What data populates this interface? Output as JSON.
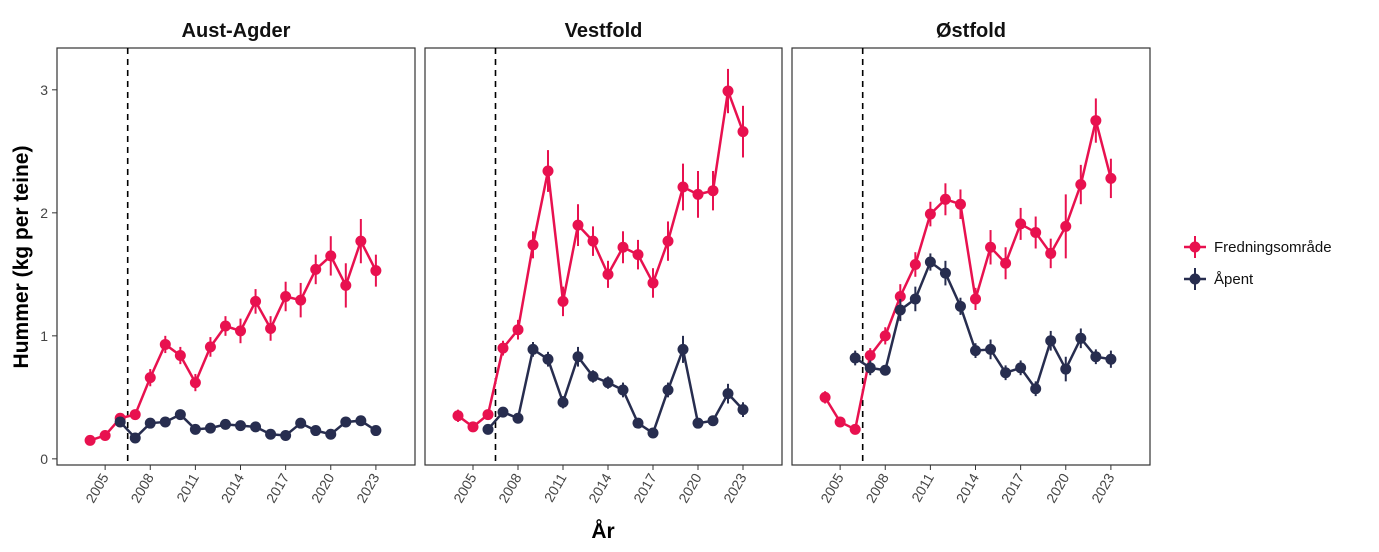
{
  "chart_data": {
    "type": "line",
    "xlabel": "År",
    "ylabel": "Hummer (kg per teine)",
    "xlim": [
      2001.8,
      2025.6
    ],
    "ylim": [
      -0.05,
      3.34
    ],
    "x_ticks": [
      2005,
      2008,
      2011,
      2014,
      2017,
      2020,
      2023
    ],
    "y_ticks": [
      0,
      1,
      2,
      3
    ],
    "reference_line_x": 2006.5,
    "grid": false,
    "legend_position": "right",
    "colors": {
      "Fredningsområde": "#e8114f",
      "Åpent": "#272d4f"
    },
    "legend": [
      "Fredningsområde",
      "Åpent"
    ],
    "panels": [
      {
        "title": "Aust-Agder",
        "series": [
          {
            "name": "Fredningsområde",
            "x": [
              2004,
              2005,
              2006,
              2007,
              2008,
              2009,
              2010,
              2011,
              2012,
              2013,
              2014,
              2015,
              2016,
              2017,
              2018,
              2019,
              2020,
              2021,
              2022,
              2023
            ],
            "y": [
              0.15,
              0.19,
              0.33,
              0.36,
              0.66,
              0.93,
              0.84,
              0.62,
              0.91,
              1.08,
              1.04,
              1.28,
              1.06,
              1.32,
              1.29,
              1.54,
              1.65,
              1.41,
              1.77,
              1.53
            ],
            "err": [
              0.02,
              0.02,
              0.03,
              0.03,
              0.07,
              0.07,
              0.07,
              0.07,
              0.08,
              0.08,
              0.1,
              0.1,
              0.1,
              0.12,
              0.14,
              0.12,
              0.16,
              0.18,
              0.18,
              0.13
            ]
          },
          {
            "name": "Åpent",
            "x": [
              2006,
              2007,
              2008,
              2009,
              2010,
              2011,
              2012,
              2013,
              2014,
              2015,
              2016,
              2017,
              2018,
              2019,
              2020,
              2021,
              2022,
              2023
            ],
            "y": [
              0.3,
              0.17,
              0.29,
              0.3,
              0.36,
              0.24,
              0.25,
              0.28,
              0.27,
              0.26,
              0.2,
              0.19,
              0.29,
              0.23,
              0.2,
              0.3,
              0.31,
              0.23
            ],
            "err": [
              0.03,
              0.02,
              0.02,
              0.02,
              0.03,
              0.02,
              0.02,
              0.02,
              0.02,
              0.03,
              0.02,
              0.02,
              0.03,
              0.02,
              0.02,
              0.03,
              0.03,
              0.03
            ]
          }
        ]
      },
      {
        "title": "Vestfold",
        "series": [
          {
            "name": "Fredningsområde",
            "x": [
              2004,
              2005,
              2006,
              2007,
              2008,
              2009,
              2010,
              2011,
              2012,
              2013,
              2014,
              2015,
              2016,
              2017,
              2018,
              2019,
              2020,
              2021,
              2022,
              2023
            ],
            "y": [
              0.35,
              0.26,
              0.36,
              0.9,
              1.05,
              1.74,
              2.34,
              1.28,
              1.9,
              1.77,
              1.5,
              1.72,
              1.66,
              1.43,
              1.77,
              2.21,
              2.15,
              2.18,
              2.99,
              2.66
            ],
            "err": [
              0.05,
              0.03,
              0.04,
              0.06,
              0.08,
              0.11,
              0.17,
              0.12,
              0.17,
              0.12,
              0.11,
              0.13,
              0.12,
              0.12,
              0.16,
              0.19,
              0.19,
              0.16,
              0.18,
              0.21
            ]
          },
          {
            "name": "Åpent",
            "x": [
              2006,
              2007,
              2008,
              2009,
              2010,
              2011,
              2012,
              2013,
              2014,
              2015,
              2016,
              2017,
              2018,
              2019,
              2020,
              2021,
              2022,
              2023
            ],
            "y": [
              0.24,
              0.38,
              0.33,
              0.89,
              0.81,
              0.46,
              0.83,
              0.67,
              0.62,
              0.56,
              0.29,
              0.21,
              0.56,
              0.89,
              0.29,
              0.31,
              0.53,
              0.4
            ],
            "err": [
              0.03,
              0.04,
              0.03,
              0.06,
              0.06,
              0.05,
              0.08,
              0.05,
              0.05,
              0.06,
              0.03,
              0.03,
              0.06,
              0.11,
              0.04,
              0.04,
              0.08,
              0.06
            ]
          }
        ]
      },
      {
        "title": "Østfold",
        "series": [
          {
            "name": "Fredningsområde",
            "x": [
              2004,
              2005,
              2006,
              2007,
              2008,
              2009,
              2010,
              2011,
              2012,
              2013,
              2014,
              2015,
              2016,
              2017,
              2018,
              2019,
              2020,
              2021,
              2022,
              2023
            ],
            "y": [
              0.5,
              0.3,
              0.24,
              0.84,
              1.0,
              1.32,
              1.58,
              1.99,
              2.11,
              2.07,
              1.3,
              1.72,
              1.59,
              1.91,
              1.84,
              1.67,
              1.89,
              2.23,
              2.75,
              2.28
            ],
            "err": [
              0.05,
              0.03,
              0.03,
              0.06,
              0.07,
              0.1,
              0.1,
              0.1,
              0.13,
              0.12,
              0.09,
              0.14,
              0.13,
              0.13,
              0.13,
              0.12,
              0.26,
              0.16,
              0.18,
              0.16
            ]
          },
          {
            "name": "Åpent",
            "x": [
              2006,
              2007,
              2008,
              2009,
              2010,
              2011,
              2012,
              2013,
              2014,
              2015,
              2016,
              2017,
              2018,
              2019,
              2020,
              2021,
              2022,
              2023
            ],
            "y": [
              0.82,
              0.74,
              0.72,
              1.21,
              1.3,
              1.6,
              1.51,
              1.24,
              0.88,
              0.89,
              0.7,
              0.74,
              0.57,
              0.96,
              0.73,
              0.98,
              0.83,
              0.81
            ],
            "err": [
              0.06,
              0.06,
              0.04,
              0.09,
              0.1,
              0.07,
              0.1,
              0.07,
              0.06,
              0.08,
              0.06,
              0.06,
              0.06,
              0.08,
              0.1,
              0.08,
              0.06,
              0.07
            ]
          }
        ]
      }
    ]
  }
}
